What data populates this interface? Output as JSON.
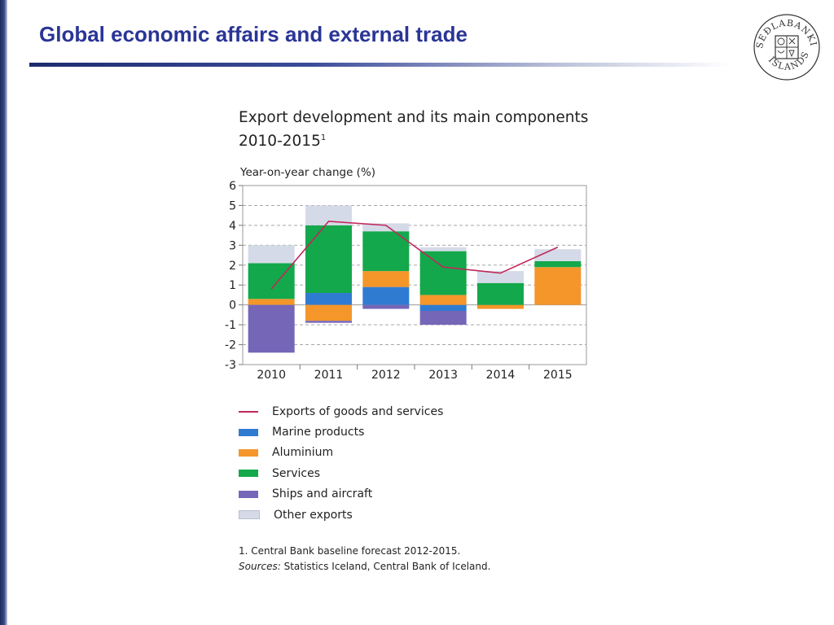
{
  "slide": {
    "title": "Global economic affairs and external trade",
    "logo_text": "SEÐLABANKI ÍSLANDS"
  },
  "chart_data": {
    "type": "bar",
    "stacked": true,
    "title_line1": "Export development and its main components",
    "title_line2": "2010-2015",
    "title_footnote_mark": "1",
    "ylabel": "Year-on-year change (%)",
    "xlabel": "",
    "ylim": [
      -3,
      6
    ],
    "yticks": [
      "6",
      "5",
      "4",
      "3",
      "2",
      "1",
      "0",
      "-1",
      "-2",
      "-3"
    ],
    "grid": true,
    "legend_position": "bottom",
    "categories": [
      "2010",
      "2011",
      "2012",
      "2013",
      "2014",
      "2015"
    ],
    "series": [
      {
        "name": "Exports of goods and services",
        "kind": "line",
        "color": "#c0285a",
        "values": [
          0.8,
          4.2,
          4.0,
          1.9,
          1.6,
          2.9
        ]
      },
      {
        "name": "Marine products",
        "kind": "bar",
        "color": "#2f7bd2",
        "values": [
          0.0,
          0.6,
          0.9,
          -0.3,
          0.0,
          0.0
        ]
      },
      {
        "name": "Aluminium",
        "kind": "bar",
        "color": "#f4962a",
        "values": [
          0.3,
          -0.8,
          0.8,
          0.5,
          -0.2,
          1.9
        ]
      },
      {
        "name": "Services",
        "kind": "bar",
        "color": "#13a84b",
        "values": [
          1.8,
          3.4,
          2.0,
          2.2,
          1.1,
          0.3
        ]
      },
      {
        "name": "Ships and aircraft",
        "kind": "bar",
        "color": "#7566b8",
        "values": [
          -2.4,
          -0.1,
          -0.2,
          -0.7,
          0.0,
          0.0
        ]
      },
      {
        "name": "Other exports",
        "kind": "bar",
        "color": "#d5dae8",
        "values": [
          0.9,
          1.0,
          0.4,
          0.2,
          0.6,
          0.6
        ]
      }
    ],
    "footnote": "1. Central Bank baseline forecast 2012-2015.",
    "sources_label": "Sources:",
    "sources_text": "Statistics Iceland, Central Bank of Iceland."
  }
}
